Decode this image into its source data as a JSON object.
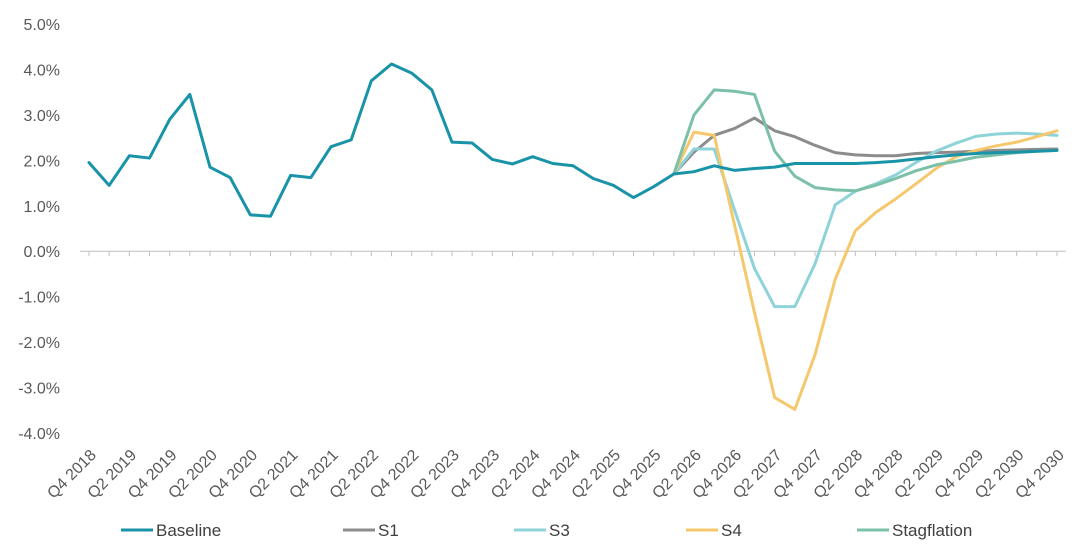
{
  "chart_data": {
    "type": "line",
    "title": "",
    "xlabel": "",
    "ylabel": "",
    "ylim": [
      -4.0,
      5.0
    ],
    "y_ticks": [
      "5.0%",
      "4.0%",
      "3.0%",
      "2.0%",
      "1.0%",
      "0.0%",
      "-1.0%",
      "-2.0%",
      "-3.0%",
      "-4.0%"
    ],
    "y_tick_values": [
      5,
      4,
      3,
      2,
      1,
      0,
      -1,
      -2,
      -3,
      -4
    ],
    "x": [
      "Q4 2018",
      "Q1 2019",
      "Q2 2019",
      "Q3 2019",
      "Q4 2019",
      "Q1 2020",
      "Q2 2020",
      "Q3 2020",
      "Q4 2020",
      "Q1 2021",
      "Q2 2021",
      "Q3 2021",
      "Q4 2021",
      "Q1 2022",
      "Q2 2022",
      "Q3 2022",
      "Q4 2022",
      "Q1 2023",
      "Q2 2023",
      "Q3 2023",
      "Q4 2023",
      "Q1 2024",
      "Q2 2024",
      "Q3 2024",
      "Q4 2024",
      "Q1 2025",
      "Q2 2025",
      "Q3 2025",
      "Q4 2025",
      "Q1 2026",
      "Q2 2026",
      "Q3 2026",
      "Q4 2026",
      "Q1 2027",
      "Q2 2027",
      "Q3 2027",
      "Q4 2027",
      "Q1 2028",
      "Q2 2028",
      "Q3 2028",
      "Q4 2028",
      "Q1 2029",
      "Q2 2029",
      "Q3 2029",
      "Q4 2029",
      "Q1 2030",
      "Q2 2030",
      "Q3 2030",
      "Q4 2030"
    ],
    "x_tick_labels": [
      "Q4 2018",
      "Q2 2019",
      "Q4 2019",
      "Q2 2020",
      "Q4 2020",
      "Q2 2021",
      "Q4 2021",
      "Q2 2022",
      "Q4 2022",
      "Q2 2023",
      "Q4 2023",
      "Q2 2024",
      "Q4 2024",
      "Q2 2025",
      "Q4 2025",
      "Q2 2026",
      "Q4 2026",
      "Q2 2027",
      "Q4 2027",
      "Q2 2028",
      "Q4 2028",
      "Q2 2029",
      "Q4 2029",
      "Q2 2030",
      "Q4 2030"
    ],
    "legend_position": "bottom",
    "series": [
      {
        "name": "Baseline",
        "color": "#1893a8",
        "values": [
          1.95,
          1.45,
          2.1,
          2.05,
          2.9,
          3.45,
          1.85,
          1.62,
          0.8,
          0.77,
          1.67,
          1.62,
          2.3,
          2.45,
          3.75,
          4.12,
          3.92,
          3.55,
          2.4,
          2.38,
          2.02,
          1.92,
          2.08,
          1.93,
          1.88,
          1.6,
          1.45,
          1.18,
          1.42,
          1.7,
          1.75,
          1.88,
          1.78,
          1.82,
          1.85,
          1.93,
          1.93,
          1.93,
          1.93,
          1.95,
          1.98,
          2.03,
          2.08,
          2.12,
          2.15,
          2.17,
          2.18,
          2.2,
          2.22
        ]
      },
      {
        "name": "S1",
        "color": "#8c8c8c",
        "values": [
          null,
          null,
          null,
          null,
          null,
          null,
          null,
          null,
          null,
          null,
          null,
          null,
          null,
          null,
          null,
          null,
          null,
          null,
          null,
          null,
          null,
          null,
          null,
          null,
          null,
          null,
          null,
          null,
          null,
          1.7,
          2.18,
          2.55,
          2.7,
          2.93,
          2.65,
          2.52,
          2.33,
          2.17,
          2.12,
          2.1,
          2.1,
          2.15,
          2.17,
          2.18,
          2.2,
          2.22,
          2.23,
          2.24,
          2.25
        ]
      },
      {
        "name": "S3",
        "color": "#8dd3d8",
        "values": [
          null,
          null,
          null,
          null,
          null,
          null,
          null,
          null,
          null,
          null,
          null,
          null,
          null,
          null,
          null,
          null,
          null,
          null,
          null,
          null,
          null,
          null,
          null,
          null,
          null,
          null,
          null,
          null,
          null,
          1.7,
          2.25,
          2.25,
          0.92,
          -0.38,
          -1.22,
          -1.22,
          -0.28,
          1.02,
          1.32,
          1.48,
          1.68,
          1.95,
          2.2,
          2.38,
          2.53,
          2.58,
          2.6,
          2.58,
          2.55
        ]
      },
      {
        "name": "S4",
        "color": "#f5c86e",
        "values": [
          null,
          null,
          null,
          null,
          null,
          null,
          null,
          null,
          null,
          null,
          null,
          null,
          null,
          null,
          null,
          null,
          null,
          null,
          null,
          null,
          null,
          null,
          null,
          null,
          null,
          null,
          null,
          null,
          null,
          1.7,
          2.62,
          2.55,
          0.6,
          -1.35,
          -3.22,
          -3.48,
          -2.28,
          -0.62,
          0.45,
          0.85,
          1.15,
          1.48,
          1.82,
          2.08,
          2.22,
          2.32,
          2.4,
          2.52,
          2.65
        ]
      },
      {
        "name": "Stagflation",
        "color": "#7cc0a8",
        "values": [
          null,
          null,
          null,
          null,
          null,
          null,
          null,
          null,
          null,
          null,
          null,
          null,
          null,
          null,
          null,
          null,
          null,
          null,
          null,
          null,
          null,
          null,
          null,
          null,
          null,
          null,
          null,
          null,
          null,
          1.7,
          3.0,
          3.55,
          3.52,
          3.45,
          2.2,
          1.65,
          1.4,
          1.35,
          1.33,
          1.45,
          1.6,
          1.77,
          1.9,
          1.98,
          2.07,
          2.12,
          2.17,
          2.2,
          2.22
        ]
      }
    ]
  }
}
